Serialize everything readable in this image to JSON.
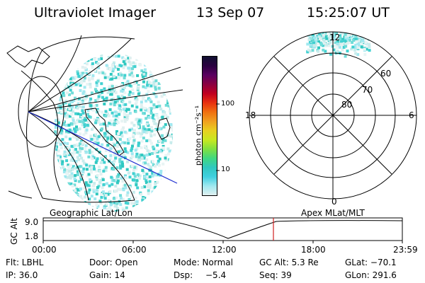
{
  "header": {
    "title": "Ultraviolet Imager",
    "date": "13 Sep 07",
    "time": "15:25:07 UT"
  },
  "colorbar": {
    "unit_label": "photon cm⁻²s⁻¹",
    "ticks": [
      "100",
      "10"
    ],
    "colors": [
      "#101030",
      "#2a0040",
      "#5a0060",
      "#8a0040",
      "#c00020",
      "#e83010",
      "#f07010",
      "#f0a020",
      "#e8d020",
      "#c8e820",
      "#80e040",
      "#40d880",
      "#30c8c0",
      "#40d0e0",
      "#a0e8f0",
      "#e0f0f0"
    ]
  },
  "polar_plot": {
    "mlt_labels": {
      "top": "12",
      "left": "18",
      "right": "6",
      "bottom": "0"
    },
    "lat_labels": [
      "60",
      "70",
      "80"
    ]
  },
  "timeline": {
    "left_label": "Geographic Lat/Lon",
    "right_label": "Apex MLat/MLT",
    "axis_label": "GC Alt",
    "y_ticks": [
      "9.0",
      "1.8"
    ],
    "x_ticks": [
      "00:00",
      "06:00",
      "12:00",
      "18:00",
      "23:59"
    ],
    "marker_color": "#d02020"
  },
  "info": {
    "flt": "Flt: LBHL",
    "door": "Door: Open",
    "mode": "Mode: Normal",
    "gc_alt": "GC Alt: 5.3 Re",
    "glat": "GLat: −70.1",
    "ip": "IP: 36.0",
    "gain": "Gain: 14",
    "dsp_label": "Dsp:",
    "dsp_value": "−5.4",
    "seq": "Seq: 39",
    "glon": "GLon: 291.6"
  }
}
